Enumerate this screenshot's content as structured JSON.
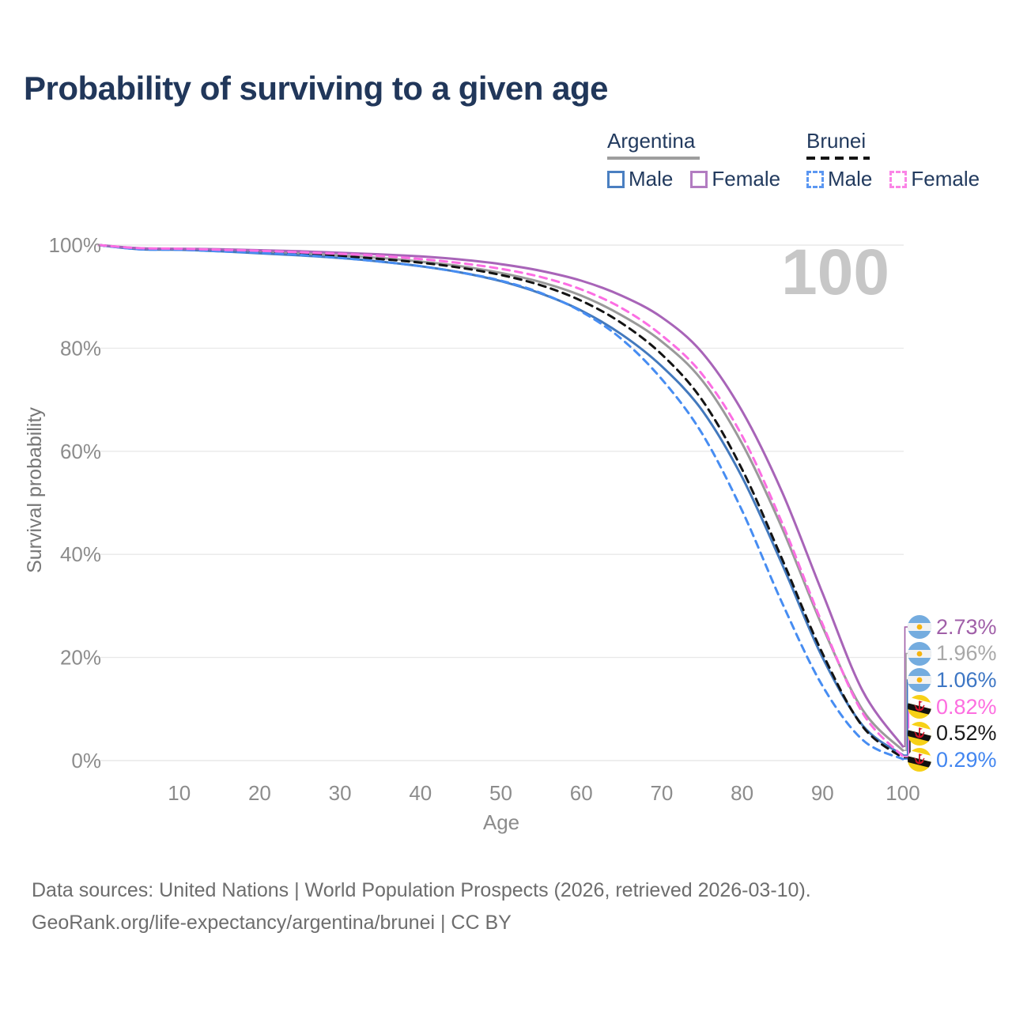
{
  "title": "Probability of surviving to a given age",
  "legend": {
    "groups": [
      {
        "name": "Argentina",
        "line_style": "solid",
        "underline_color": "#9e9e9e",
        "items": [
          {
            "label": "Male",
            "color": "#4a7fc1"
          },
          {
            "label": "Female",
            "color": "#b27cc1"
          }
        ]
      },
      {
        "name": "Brunei",
        "line_style": "dashed",
        "underline_color": "#141414",
        "items": [
          {
            "label": "Male",
            "color": "#5b97f2"
          },
          {
            "label": "Female",
            "color": "#fb84e6"
          }
        ]
      }
    ]
  },
  "watermark": "100",
  "chart_data": {
    "type": "line",
    "title": "Probability of surviving to a given age",
    "xlabel": "Age",
    "ylabel": "Survival probability",
    "xlim": [
      0,
      100
    ],
    "ylim": [
      0,
      100
    ],
    "grid": "horizontal",
    "legend_position": "top-right",
    "x_ticks": [
      {
        "v": 10,
        "label": "10"
      },
      {
        "v": 20,
        "label": "20"
      },
      {
        "v": 30,
        "label": "30"
      },
      {
        "v": 40,
        "label": "40"
      },
      {
        "v": 50,
        "label": "50"
      },
      {
        "v": 60,
        "label": "60"
      },
      {
        "v": 70,
        "label": "70"
      },
      {
        "v": 80,
        "label": "80"
      },
      {
        "v": 90,
        "label": "90"
      },
      {
        "v": 100,
        "label": "100"
      }
    ],
    "y_ticks": [
      {
        "v": 0,
        "label": "0%"
      },
      {
        "v": 20,
        "label": "20%"
      },
      {
        "v": 40,
        "label": "40%"
      },
      {
        "v": 60,
        "label": "60%"
      },
      {
        "v": 80,
        "label": "80%"
      },
      {
        "v": 100,
        "label": "100%"
      }
    ],
    "x": [
      0,
      5,
      10,
      15,
      20,
      25,
      30,
      35,
      40,
      45,
      50,
      55,
      60,
      65,
      70,
      75,
      80,
      85,
      90,
      95,
      100
    ],
    "series": [
      {
        "name": "Argentina Female",
        "country": "argentina",
        "dash": "solid",
        "color": "#a864b8",
        "label_color": "#a05fa8",
        "end_label": "2.73%",
        "end_value": 2.73,
        "values": [
          100,
          99.4,
          99.3,
          99.2,
          99.0,
          98.8,
          98.5,
          98.2,
          97.8,
          97.2,
          96.3,
          95.0,
          93.1,
          90.2,
          86.0,
          79.2,
          67.8,
          52.0,
          32.5,
          13.5,
          2.73
        ]
      },
      {
        "name": "Argentina",
        "country": "argentina",
        "dash": "solid",
        "color": "#9a9a9a",
        "label_color": "#a8a8a8",
        "end_label": "1.96%",
        "end_value": 1.96,
        "values": [
          100,
          99.3,
          99.2,
          99.0,
          98.7,
          98.4,
          98.0,
          97.5,
          96.8,
          95.9,
          94.6,
          92.8,
          90.2,
          86.4,
          81.3,
          73.8,
          61.5,
          45.0,
          26.0,
          9.8,
          1.96
        ]
      },
      {
        "name": "Argentina Male",
        "country": "argentina",
        "dash": "solid",
        "color": "#4379bd",
        "label_color": "#3d76c4",
        "end_label": "1.06%",
        "end_value": 1.06,
        "values": [
          100,
          99.2,
          99.1,
          98.8,
          98.4,
          98.0,
          97.5,
          96.8,
          95.9,
          94.7,
          93.0,
          90.6,
          87.3,
          82.7,
          76.5,
          68.0,
          55.0,
          38.0,
          20.0,
          6.8,
          1.06
        ]
      },
      {
        "name": "Brunei Female",
        "country": "brunei",
        "dash": "dashed",
        "color": "#fc6ee3",
        "label_color": "#fd6ee0",
        "end_label": "0.82%",
        "end_value": 0.82,
        "values": [
          100,
          99.4,
          99.3,
          99.1,
          98.9,
          98.6,
          98.3,
          97.9,
          97.3,
          96.5,
          95.4,
          93.8,
          91.4,
          87.8,
          82.5,
          75.0,
          63.0,
          46.0,
          26.5,
          9.2,
          0.82
        ]
      },
      {
        "name": "Brunei",
        "country": "brunei",
        "dash": "dashed",
        "color": "#141414",
        "label_color": "#1a1a1a",
        "end_label": "0.52%",
        "end_value": 0.52,
        "values": [
          100,
          99.3,
          99.2,
          99.0,
          98.7,
          98.3,
          97.9,
          97.3,
          96.6,
          95.6,
          94.2,
          92.2,
          89.2,
          84.9,
          78.8,
          70.0,
          56.5,
          39.0,
          20.8,
          6.6,
          0.52
        ]
      },
      {
        "name": "Brunei Male",
        "country": "brunei",
        "dash": "dashed",
        "color": "#478df2",
        "label_color": "#4286f0",
        "end_label": "0.29%",
        "end_value": 0.29,
        "values": [
          100,
          99.2,
          99.1,
          98.8,
          98.5,
          98.1,
          97.5,
          96.8,
          95.9,
          94.7,
          93.1,
          90.7,
          87.1,
          81.8,
          74.0,
          63.5,
          48.5,
          30.5,
          14.5,
          4.0,
          0.29
        ]
      }
    ]
  },
  "colors": {
    "title": "#21375a",
    "axis_text": "#8c8c8c",
    "gridline": "#e9e9e9",
    "watermark": "#c7c7c7",
    "footer_text": "#6d6d6d"
  },
  "footer": {
    "line1": "Data sources: United Nations | World Population Prospects (2026, retrieved 2026-03-10).",
    "line2": "GeoRank.org/life-expectancy/argentina/brunei | CC BY"
  }
}
